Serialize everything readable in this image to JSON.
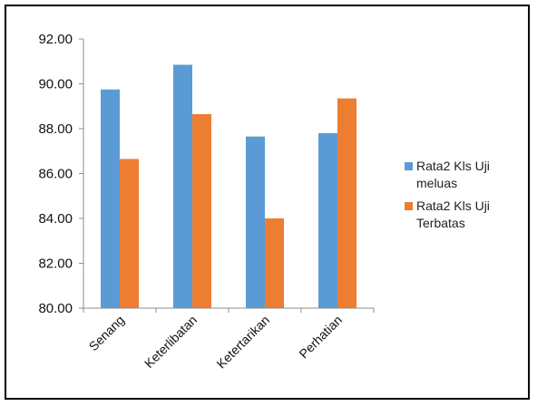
{
  "chart_data": {
    "type": "bar",
    "categories": [
      "Senang",
      "Keterlibatan",
      "Ketertarikan",
      "Perhatian"
    ],
    "series": [
      {
        "name": "Rata2 Kls Uji meluas",
        "values": [
          89.75,
          90.85,
          87.65,
          87.8
        ],
        "color": "#5b9bd5"
      },
      {
        "name": "Rata2 Kls Uji Terbatas",
        "values": [
          86.65,
          88.65,
          84.0,
          89.35
        ],
        "color": "#ed7d31"
      }
    ],
    "y_ticks": [
      "80.00",
      "82.00",
      "84.00",
      "86.00",
      "88.00",
      "90.00",
      "92.00"
    ],
    "ylim": [
      80,
      92
    ],
    "legend_lines": [
      [
        "Rata2 Kls Uji",
        "meluas"
      ],
      [
        "Rata2 Kls Uji",
        "Terbatas"
      ]
    ],
    "legend_position": "right",
    "grid": false
  }
}
